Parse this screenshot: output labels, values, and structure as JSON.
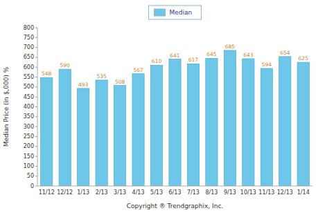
{
  "chart_data": {
    "type": "bar",
    "categories": [
      "11/12",
      "12/12",
      "1/13",
      "2/13",
      "3/13",
      "4/13",
      "5/13",
      "6/13",
      "7/13",
      "8/13",
      "9/13",
      "10/13",
      "11/13",
      "12/13",
      "1/14"
    ],
    "series": [
      {
        "name": "Median",
        "color": "#6ec6e8",
        "values": [
          548,
          590,
          493,
          535,
          508,
          567,
          610,
          641,
          617,
          645,
          685,
          643,
          594,
          654,
          625
        ]
      }
    ],
    "ylabel": "Median Price (in $,000) %",
    "xlabel": "Copyright ® Trendgraphix, Inc.",
    "ylim": [
      0,
      800
    ],
    "yticks": [
      0,
      50,
      100,
      150,
      200,
      250,
      300,
      350,
      400,
      450,
      500,
      550,
      600,
      650,
      700,
      750,
      800
    ],
    "grid": false,
    "legend": "top",
    "data_labels": true
  }
}
